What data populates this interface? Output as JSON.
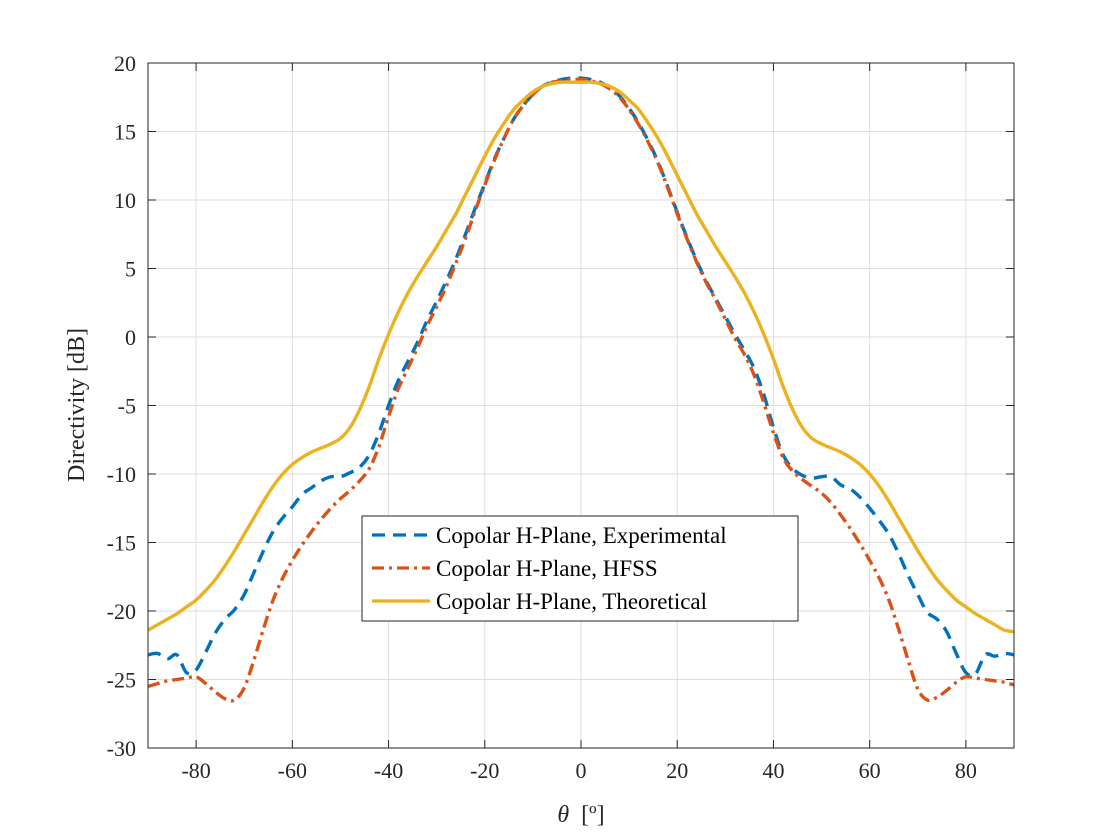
{
  "chart_data": {
    "type": "line",
    "xlabel_symbol": "θ",
    "xlabel_unit": "[º]",
    "ylabel": "Directivity [dB]",
    "xlim": [
      -90,
      90
    ],
    "ylim": [
      -30,
      20
    ],
    "xticks": [
      -80,
      -60,
      -40,
      -20,
      0,
      20,
      40,
      60,
      80
    ],
    "yticks": [
      20,
      15,
      10,
      5,
      0,
      -5,
      -10,
      -15,
      -20,
      -25,
      -30
    ],
    "grid": true,
    "legend_position": "center",
    "series": [
      {
        "name": "Copolar H-Plane, Experimental",
        "color": "#0072BD",
        "style": "dashed",
        "x": [
          -90,
          -88,
          -86,
          -84,
          -82,
          -80,
          -78,
          -76,
          -74,
          -72,
          -70,
          -68,
          -66,
          -64,
          -62,
          -60,
          -58,
          -56,
          -54,
          -52,
          -50,
          -48,
          -46,
          -44,
          -42,
          -40,
          -38,
          -36,
          -34,
          -32,
          -30,
          -28,
          -26,
          -24,
          -22,
          -20,
          -18,
          -16,
          -14,
          -12,
          -10,
          -8,
          -6,
          -4,
          -2,
          0,
          2,
          4,
          6,
          8,
          10,
          12,
          14,
          16,
          18,
          20,
          22,
          24,
          26,
          28,
          30,
          32,
          34,
          36,
          38,
          40,
          42,
          44,
          46,
          48,
          50,
          52,
          54,
          56,
          58,
          60,
          62,
          64,
          66,
          68,
          70,
          72,
          74,
          76,
          78,
          80,
          82,
          84,
          86,
          88,
          90
        ],
        "y": [
          -23.2,
          -23.1,
          -23.5,
          -23.2,
          -24.5,
          -24.3,
          -23.0,
          -21.6,
          -20.6,
          -19.9,
          -18.8,
          -17.2,
          -15.6,
          -14.2,
          -13.2,
          -12.4,
          -11.5,
          -11.0,
          -10.5,
          -10.2,
          -10.2,
          -9.9,
          -9.5,
          -8.6,
          -7.0,
          -5.0,
          -3.2,
          -1.8,
          -0.4,
          1.2,
          2.6,
          4.1,
          5.7,
          7.5,
          9.4,
          11.2,
          13.0,
          14.5,
          15.9,
          16.9,
          17.7,
          18.3,
          18.6,
          18.8,
          18.9,
          18.9,
          18.8,
          18.6,
          18.2,
          17.6,
          16.7,
          15.6,
          14.3,
          12.8,
          11.0,
          9.1,
          7.3,
          5.6,
          4.1,
          2.8,
          1.5,
          0.2,
          -1.0,
          -2.3,
          -4.2,
          -6.6,
          -8.6,
          -9.6,
          -10.1,
          -10.3,
          -10.2,
          -10.2,
          -10.8,
          -11.1,
          -11.7,
          -12.5,
          -13.4,
          -14.4,
          -15.8,
          -17.4,
          -18.8,
          -20.1,
          -20.6,
          -21.5,
          -23.1,
          -24.5,
          -24.6,
          -23.2,
          -23.3,
          -23.1,
          -23.2
        ]
      },
      {
        "name": "Copolar H-Plane, HFSS",
        "color": "#D95319",
        "style": "dashdot",
        "x": [
          -90,
          -88,
          -86,
          -84,
          -82,
          -80,
          -78,
          -76,
          -74,
          -72,
          -70,
          -68,
          -66,
          -64,
          -62,
          -60,
          -58,
          -56,
          -54,
          -52,
          -50,
          -48,
          -46,
          -44,
          -42,
          -40,
          -38,
          -36,
          -34,
          -32,
          -30,
          -28,
          -26,
          -24,
          -22,
          -20,
          -18,
          -16,
          -14,
          -12,
          -10,
          -8,
          -6,
          -4,
          -2,
          0,
          2,
          4,
          6,
          8,
          10,
          12,
          14,
          16,
          18,
          20,
          22,
          24,
          26,
          28,
          30,
          32,
          34,
          36,
          38,
          40,
          42,
          44,
          46,
          48,
          50,
          52,
          54,
          56,
          58,
          60,
          62,
          64,
          66,
          68,
          70,
          72,
          74,
          76,
          78,
          80,
          82,
          84,
          86,
          88,
          90
        ],
        "y": [
          -25.5,
          -25.3,
          -25.1,
          -25.0,
          -24.9,
          -24.8,
          -25.3,
          -25.9,
          -26.4,
          -26.5,
          -25.6,
          -23.6,
          -21.3,
          -19.2,
          -17.6,
          -16.3,
          -15.2,
          -14.2,
          -13.3,
          -12.5,
          -11.8,
          -11.2,
          -10.5,
          -9.6,
          -8.0,
          -5.8,
          -3.8,
          -2.3,
          -0.8,
          0.8,
          2.2,
          3.7,
          5.4,
          7.2,
          9.2,
          11.1,
          12.9,
          14.5,
          15.9,
          16.9,
          17.7,
          18.3,
          18.6,
          18.7,
          18.8,
          18.8,
          18.7,
          18.5,
          18.1,
          17.5,
          16.6,
          15.5,
          14.2,
          12.7,
          10.9,
          9.0,
          7.2,
          5.5,
          4.0,
          2.7,
          1.3,
          -0.1,
          -1.3,
          -2.8,
          -4.8,
          -7.0,
          -8.8,
          -9.8,
          -10.4,
          -10.9,
          -11.4,
          -12.1,
          -13.0,
          -14.0,
          -15.1,
          -16.3,
          -17.6,
          -19.2,
          -21.3,
          -23.6,
          -25.7,
          -26.5,
          -26.3,
          -25.8,
          -25.2,
          -24.8,
          -24.9,
          -25.0,
          -25.1,
          -25.2,
          -25.4
        ]
      },
      {
        "name": "Copolar H-Plane, Theoretical",
        "color": "#EDB120",
        "style": "solid",
        "x": [
          -90,
          -88,
          -86,
          -84,
          -82,
          -80,
          -78,
          -76,
          -74,
          -72,
          -70,
          -68,
          -66,
          -64,
          -62,
          -60,
          -58,
          -56,
          -54,
          -52,
          -50,
          -48,
          -46,
          -44,
          -42,
          -40,
          -38,
          -36,
          -34,
          -32,
          -30,
          -28,
          -26,
          -24,
          -22,
          -20,
          -18,
          -16,
          -14,
          -12,
          -10,
          -8,
          -6,
          -4,
          -2,
          0,
          2,
          4,
          6,
          8,
          10,
          12,
          14,
          16,
          18,
          20,
          22,
          24,
          26,
          28,
          30,
          32,
          34,
          36,
          38,
          40,
          42,
          44,
          46,
          48,
          50,
          52,
          54,
          56,
          58,
          60,
          62,
          64,
          66,
          68,
          70,
          72,
          74,
          76,
          78,
          80,
          82,
          84,
          86,
          88,
          90
        ],
        "y": [
          -21.4,
          -21.0,
          -20.6,
          -20.2,
          -19.7,
          -19.2,
          -18.5,
          -17.7,
          -16.7,
          -15.6,
          -14.4,
          -13.2,
          -12.0,
          -10.9,
          -10.0,
          -9.3,
          -8.8,
          -8.4,
          -8.1,
          -7.8,
          -7.4,
          -6.6,
          -5.3,
          -3.6,
          -1.6,
          0.2,
          1.8,
          3.2,
          4.4,
          5.5,
          6.6,
          7.8,
          9.0,
          10.4,
          11.8,
          13.2,
          14.5,
          15.6,
          16.6,
          17.3,
          17.9,
          18.3,
          18.5,
          18.6,
          18.6,
          18.6,
          18.6,
          18.5,
          18.3,
          17.9,
          17.3,
          16.6,
          15.6,
          14.5,
          13.2,
          11.8,
          10.4,
          9.0,
          7.8,
          6.6,
          5.5,
          4.4,
          3.2,
          1.8,
          0.2,
          -1.6,
          -3.6,
          -5.3,
          -6.6,
          -7.4,
          -7.8,
          -8.1,
          -8.4,
          -8.8,
          -9.3,
          -10.0,
          -10.9,
          -12.0,
          -13.2,
          -14.4,
          -15.6,
          -16.7,
          -17.7,
          -18.5,
          -19.2,
          -19.7,
          -20.2,
          -20.6,
          -21.0,
          -21.4,
          -21.5
        ]
      }
    ]
  }
}
